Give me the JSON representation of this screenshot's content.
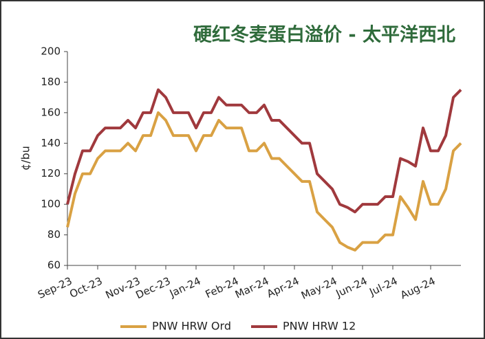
{
  "chart_data": {
    "type": "line",
    "title": "硬红冬麦蛋白溢价 - 太平洋西北",
    "y_label": "¢/bu",
    "categories": [
      "Sep-23",
      null,
      null,
      null,
      "Oct-23",
      null,
      null,
      null,
      null,
      "Nov-23",
      null,
      null,
      null,
      "Dec-23",
      null,
      null,
      null,
      "Jan-24",
      null,
      null,
      null,
      null,
      "Feb-24",
      null,
      null,
      null,
      "Mar-24",
      null,
      null,
      null,
      "Apr-24",
      null,
      null,
      null,
      null,
      "May-24",
      null,
      null,
      null,
      "Jun-24",
      null,
      null,
      null,
      "Jul-24",
      null,
      null,
      null,
      null,
      "Aug-24",
      null,
      null,
      null,
      null
    ],
    "series": [
      {
        "name": "PNW HRW Ord",
        "color": "#d9a143",
        "values": [
          85,
          107,
          120,
          120,
          130,
          135,
          135,
          135,
          140,
          135,
          145,
          145,
          160,
          155,
          145,
          145,
          145,
          135,
          145,
          145,
          155,
          150,
          150,
          150,
          135,
          135,
          140,
          130,
          130,
          125,
          120,
          115,
          115,
          95,
          90,
          85,
          75,
          72,
          70,
          75,
          75,
          75,
          80,
          80,
          105,
          98,
          90,
          115,
          100,
          100,
          110,
          135,
          140
        ]
      },
      {
        "name": "PNW HRW 12",
        "color": "#a0393d",
        "values": [
          100,
          120,
          135,
          135,
          145,
          150,
          150,
          150,
          155,
          150,
          160,
          160,
          175,
          170,
          160,
          160,
          160,
          150,
          160,
          160,
          170,
          165,
          165,
          165,
          160,
          160,
          165,
          155,
          155,
          150,
          145,
          140,
          140,
          120,
          115,
          110,
          100,
          98,
          95,
          100,
          100,
          100,
          105,
          105,
          130,
          128,
          125,
          150,
          135,
          135,
          145,
          170,
          175
        ]
      }
    ],
    "ylim": [
      60,
      200
    ],
    "yticks": [
      60,
      80,
      100,
      120,
      140,
      160,
      180,
      200
    ]
  }
}
